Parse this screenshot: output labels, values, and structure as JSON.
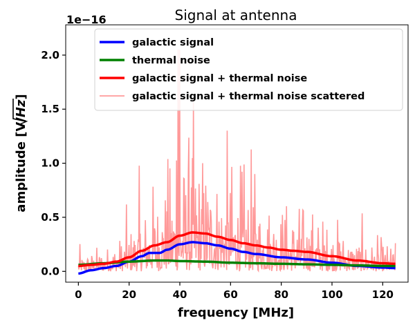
{
  "chart_data": {
    "type": "line",
    "title": "Signal at antenna",
    "xlabel": "frequency [MHz]",
    "ylabel_main": "amplitude [V/",
    "ylabel_sqrt": "Hz",
    "ylabel_end": "]",
    "y_offset_text": "1e−16",
    "xlim": [
      -5,
      130
    ],
    "ylim": [
      -0.1,
      2.28
    ],
    "x_ticks": [
      0,
      20,
      40,
      60,
      80,
      100,
      120
    ],
    "x_tick_labels": [
      "0",
      "20",
      "40",
      "60",
      "80",
      "100",
      "120"
    ],
    "y_ticks": [
      0.0,
      0.5,
      1.0,
      1.5,
      2.0
    ],
    "y_tick_labels": [
      "0.0",
      "0.5",
      "1.0",
      "1.5",
      "2.0"
    ],
    "grid": false,
    "legend_position": "top-right",
    "series": [
      {
        "name": "galactic signal",
        "color": "#0000ff",
        "x": [
          0,
          5,
          10,
          15,
          20,
          25,
          28,
          32,
          35,
          40,
          45,
          50,
          55,
          60,
          65,
          70,
          80,
          90,
          100,
          110,
          120,
          125
        ],
        "values": [
          -0.02,
          0.01,
          0.03,
          0.05,
          0.09,
          0.14,
          0.17,
          0.17,
          0.2,
          0.25,
          0.27,
          0.26,
          0.24,
          0.21,
          0.18,
          0.16,
          0.13,
          0.11,
          0.08,
          0.05,
          0.035,
          0.03
        ]
      },
      {
        "name": "thermal noise",
        "color": "#008000",
        "x": [
          0,
          10,
          20,
          30,
          35,
          40,
          50,
          60,
          70,
          80,
          90,
          100,
          110,
          120,
          125
        ],
        "values": [
          0.06,
          0.075,
          0.09,
          0.1,
          0.1,
          0.095,
          0.09,
          0.08,
          0.075,
          0.07,
          0.065,
          0.06,
          0.055,
          0.05,
          0.05
        ]
      },
      {
        "name": "galactic signal + thermal noise",
        "color": "#ff0000",
        "x": [
          0,
          5,
          10,
          15,
          20,
          25,
          30,
          35,
          40,
          45,
          50,
          55,
          60,
          65,
          70,
          75,
          80,
          85,
          90,
          100,
          110,
          120,
          125
        ],
        "values": [
          0.05,
          0.06,
          0.07,
          0.09,
          0.13,
          0.19,
          0.24,
          0.27,
          0.33,
          0.36,
          0.35,
          0.32,
          0.29,
          0.26,
          0.24,
          0.22,
          0.2,
          0.19,
          0.18,
          0.14,
          0.1,
          0.075,
          0.07
        ]
      },
      {
        "name": "galactic signal + thermal noise scattered",
        "color": "#ff9999",
        "scattered": true
      }
    ]
  }
}
